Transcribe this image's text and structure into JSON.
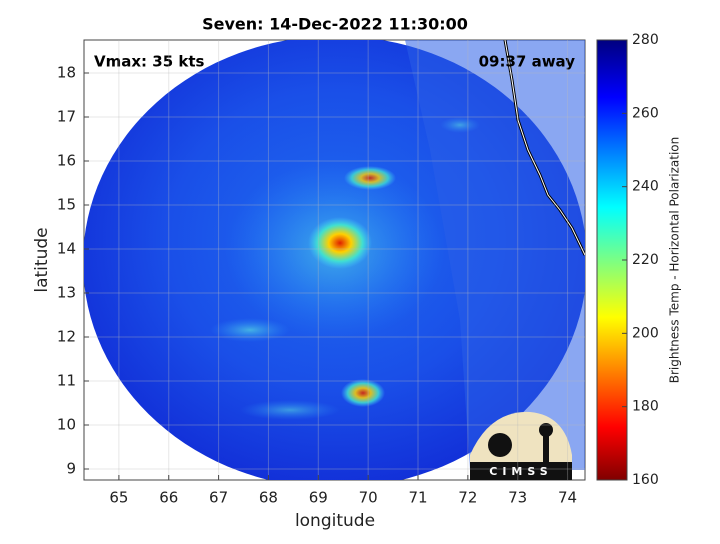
{
  "chart_data": {
    "type": "map",
    "title": "Seven: 14-Dec-2022 11:30:00",
    "annotations": [
      "Vmax: 35 kts",
      "09:37 away"
    ],
    "xlabel": "longitude",
    "ylabel": "latitude",
    "xlim": [
      64.3,
      74.35
    ],
    "xticks": [
      65,
      66,
      67,
      68,
      69,
      70,
      71,
      72,
      73,
      74
    ],
    "ylim": [
      8.75,
      18.75
    ],
    "yticks": [
      9,
      10,
      11,
      12,
      13,
      14,
      15,
      16,
      17,
      18
    ],
    "grid": true,
    "colorbar": {
      "label": "Brightness Temp - Horizontal Polarization",
      "lim": [
        160,
        280
      ],
      "ticks": [
        160,
        180,
        200,
        220,
        240,
        260,
        280
      ],
      "colormap": "jet"
    },
    "logo": "CIMSS"
  }
}
